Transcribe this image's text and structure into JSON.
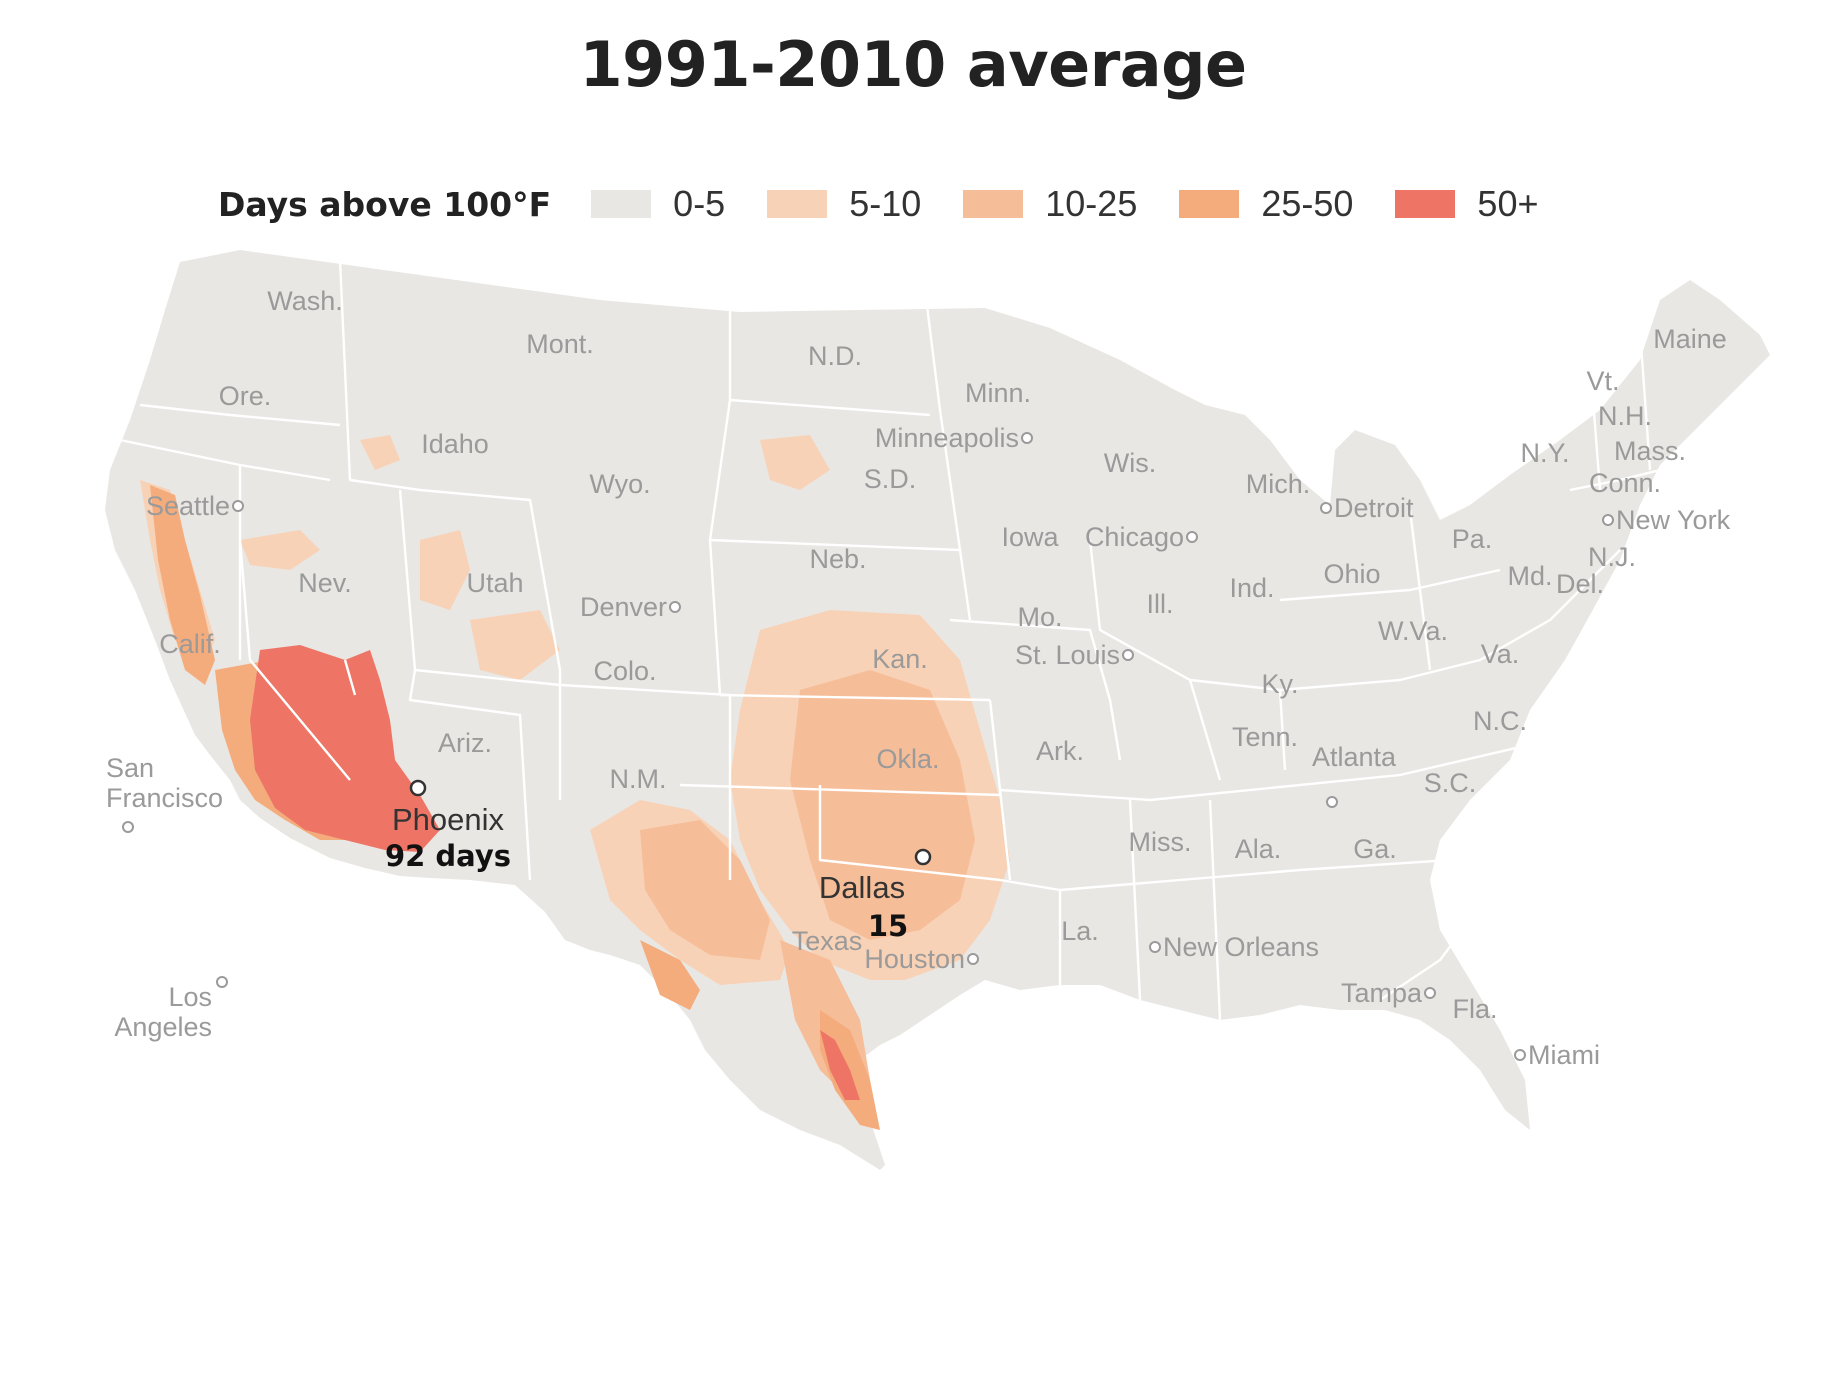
{
  "title": "1991-2010 average",
  "legend": {
    "title": "Days above 100°F",
    "items": [
      {
        "label": "0-5",
        "color": "#e9e7e3"
      },
      {
        "label": "5-10",
        "color": "#f8d2b6"
      },
      {
        "label": "10-25",
        "color": "#f6bd99"
      },
      {
        "label": "25-50",
        "color": "#f4ac7d"
      },
      {
        "label": "50+",
        "color": "#ee7565"
      }
    ]
  },
  "states": [
    "Wash.",
    "Ore.",
    "Calif.",
    "Nev.",
    "Idaho",
    "Mont.",
    "Wyo.",
    "Utah",
    "Ariz.",
    "Colo.",
    "N.M.",
    "N.D.",
    "S.D.",
    "Neb.",
    "Kan.",
    "Okla.",
    "Texas",
    "Minn.",
    "Iowa",
    "Mo.",
    "Ark.",
    "La.",
    "Wis.",
    "Ill.",
    "Mich.",
    "Ind.",
    "Ohio",
    "Ky.",
    "Tenn.",
    "Miss.",
    "Ala.",
    "Ga.",
    "Fla.",
    "S.C.",
    "N.C.",
    "Va.",
    "W.Va.",
    "Pa.",
    "N.Y.",
    "Md.",
    "Del.",
    "N.J.",
    "Conn.",
    "Mass.",
    "Vt.",
    "N.H.",
    "Maine"
  ],
  "cities": [
    {
      "name": "Seattle"
    },
    {
      "name": "San",
      "name2": "Francisco"
    },
    {
      "name": "Los",
      "name2": "Angeles"
    },
    {
      "name": "Denver"
    },
    {
      "name": "Minneapolis"
    },
    {
      "name": "Chicago"
    },
    {
      "name": "Detroit"
    },
    {
      "name": "St. Louis"
    },
    {
      "name": "New York"
    },
    {
      "name": "Atlanta"
    },
    {
      "name": "Houston"
    },
    {
      "name": "New Orleans"
    },
    {
      "name": "Tampa"
    },
    {
      "name": "Miami"
    }
  ],
  "highlighted_cities": [
    {
      "name": "Phoenix",
      "value": "92 days"
    },
    {
      "name": "Dallas",
      "value": "15"
    }
  ]
}
